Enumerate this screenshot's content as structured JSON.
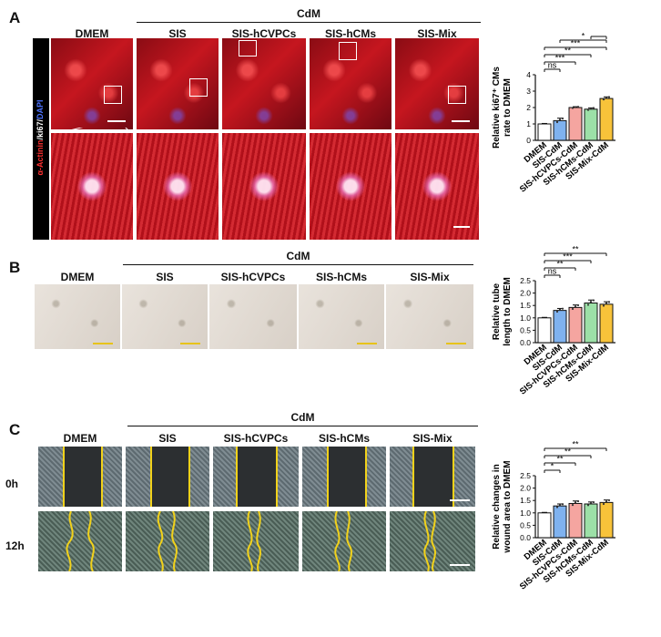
{
  "panels": {
    "A": {
      "label": "A",
      "group_label": "CdM",
      "columns": [
        "DMEM",
        "SIS",
        "SIS-hCVPCs",
        "SIS-hCMs",
        "SIS-Mix"
      ],
      "stain_label": {
        "red": "α-Actinin",
        "white": "/ki67/",
        "blue": "DAPI"
      },
      "chart_data": {
        "type": "bar",
        "categories": [
          "DMEM",
          "SIS-CdM",
          "SIS-hCVPCs-CdM",
          "SIS-hCMs-CdM",
          "SIS-Mix-CdM"
        ],
        "values": [
          1.0,
          1.2,
          2.0,
          1.9,
          2.55
        ],
        "errors": [
          0.03,
          0.15,
          0.05,
          0.08,
          0.1
        ],
        "ylabel_line1": "Relative ki67⁺ CMs",
        "ylabel_line2": "rate to DMEM",
        "ylim": [
          0,
          4
        ],
        "yticks": [
          "0",
          "1",
          "2",
          "3",
          "4"
        ],
        "colors": [
          "#ffffff",
          "#7fb2ef",
          "#f5a5a0",
          "#9ce0a7",
          "#f8c33a"
        ],
        "significance": [
          {
            "from": 0,
            "to": 1,
            "label": "ns"
          },
          {
            "from": 0,
            "to": 2,
            "label": "***"
          },
          {
            "from": 0,
            "to": 3,
            "label": "**"
          },
          {
            "from": 0,
            "to": 4,
            "label": "***"
          },
          {
            "from": 1,
            "to": 4,
            "label": "*"
          },
          {
            "from": 3,
            "to": 4,
            "label": "**"
          }
        ]
      }
    },
    "B": {
      "label": "B",
      "group_label": "CdM",
      "columns": [
        "DMEM",
        "SIS",
        "SIS-hCVPCs",
        "SIS-hCMs",
        "SIS-Mix"
      ],
      "chart_data": {
        "type": "bar",
        "categories": [
          "DMEM",
          "SIS-CdM",
          "SIS-hCVPCs-CdM",
          "SIS-hCMs-CdM",
          "SIS-Mix-CdM"
        ],
        "values": [
          1.0,
          1.3,
          1.42,
          1.6,
          1.55
        ],
        "errors": [
          0.02,
          0.08,
          0.1,
          0.12,
          0.1
        ],
        "ylabel_line1": "Relative tube",
        "ylabel_line2": "length to DMEM",
        "ylim": [
          0,
          2.5
        ],
        "yticks": [
          "0.0",
          "0.5",
          "1.0",
          "1.5",
          "2.0",
          "2.5"
        ],
        "colors": [
          "#ffffff",
          "#7fb2ef",
          "#f5a5a0",
          "#9ce0a7",
          "#f8c33a"
        ],
        "significance": [
          {
            "from": 0,
            "to": 1,
            "label": "ns"
          },
          {
            "from": 0,
            "to": 2,
            "label": "**"
          },
          {
            "from": 0,
            "to": 3,
            "label": "***"
          },
          {
            "from": 0,
            "to": 4,
            "label": "**"
          }
        ]
      }
    },
    "C": {
      "label": "C",
      "group_label": "CdM",
      "columns": [
        "DMEM",
        "SIS",
        "SIS-hCVPCs",
        "SIS-hCMs",
        "SIS-Mix"
      ],
      "rows": [
        "0h",
        "12h"
      ],
      "chart_data": {
        "type": "bar",
        "categories": [
          "DMEM",
          "SIS-CdM",
          "SIS-hCVPCs-CdM",
          "SIS-hCMs-CdM",
          "SIS-Mix-CdM"
        ],
        "values": [
          1.0,
          1.28,
          1.38,
          1.36,
          1.42
        ],
        "errors": [
          0.02,
          0.08,
          0.1,
          0.08,
          0.1
        ],
        "ylabel_line1": "Relative changes in",
        "ylabel_line2": "wound area to DMEM",
        "ylim": [
          0,
          2.5
        ],
        "yticks": [
          "0.0",
          "0.5",
          "1.0",
          "1.5",
          "2.0",
          "2.5"
        ],
        "colors": [
          "#ffffff",
          "#7fb2ef",
          "#f5a5a0",
          "#9ce0a7",
          "#f8c33a"
        ],
        "significance": [
          {
            "from": 0,
            "to": 1,
            "label": "*"
          },
          {
            "from": 0,
            "to": 2,
            "label": "**"
          },
          {
            "from": 0,
            "to": 3,
            "label": "**"
          },
          {
            "from": 0,
            "to": 4,
            "label": "**"
          }
        ]
      }
    }
  }
}
